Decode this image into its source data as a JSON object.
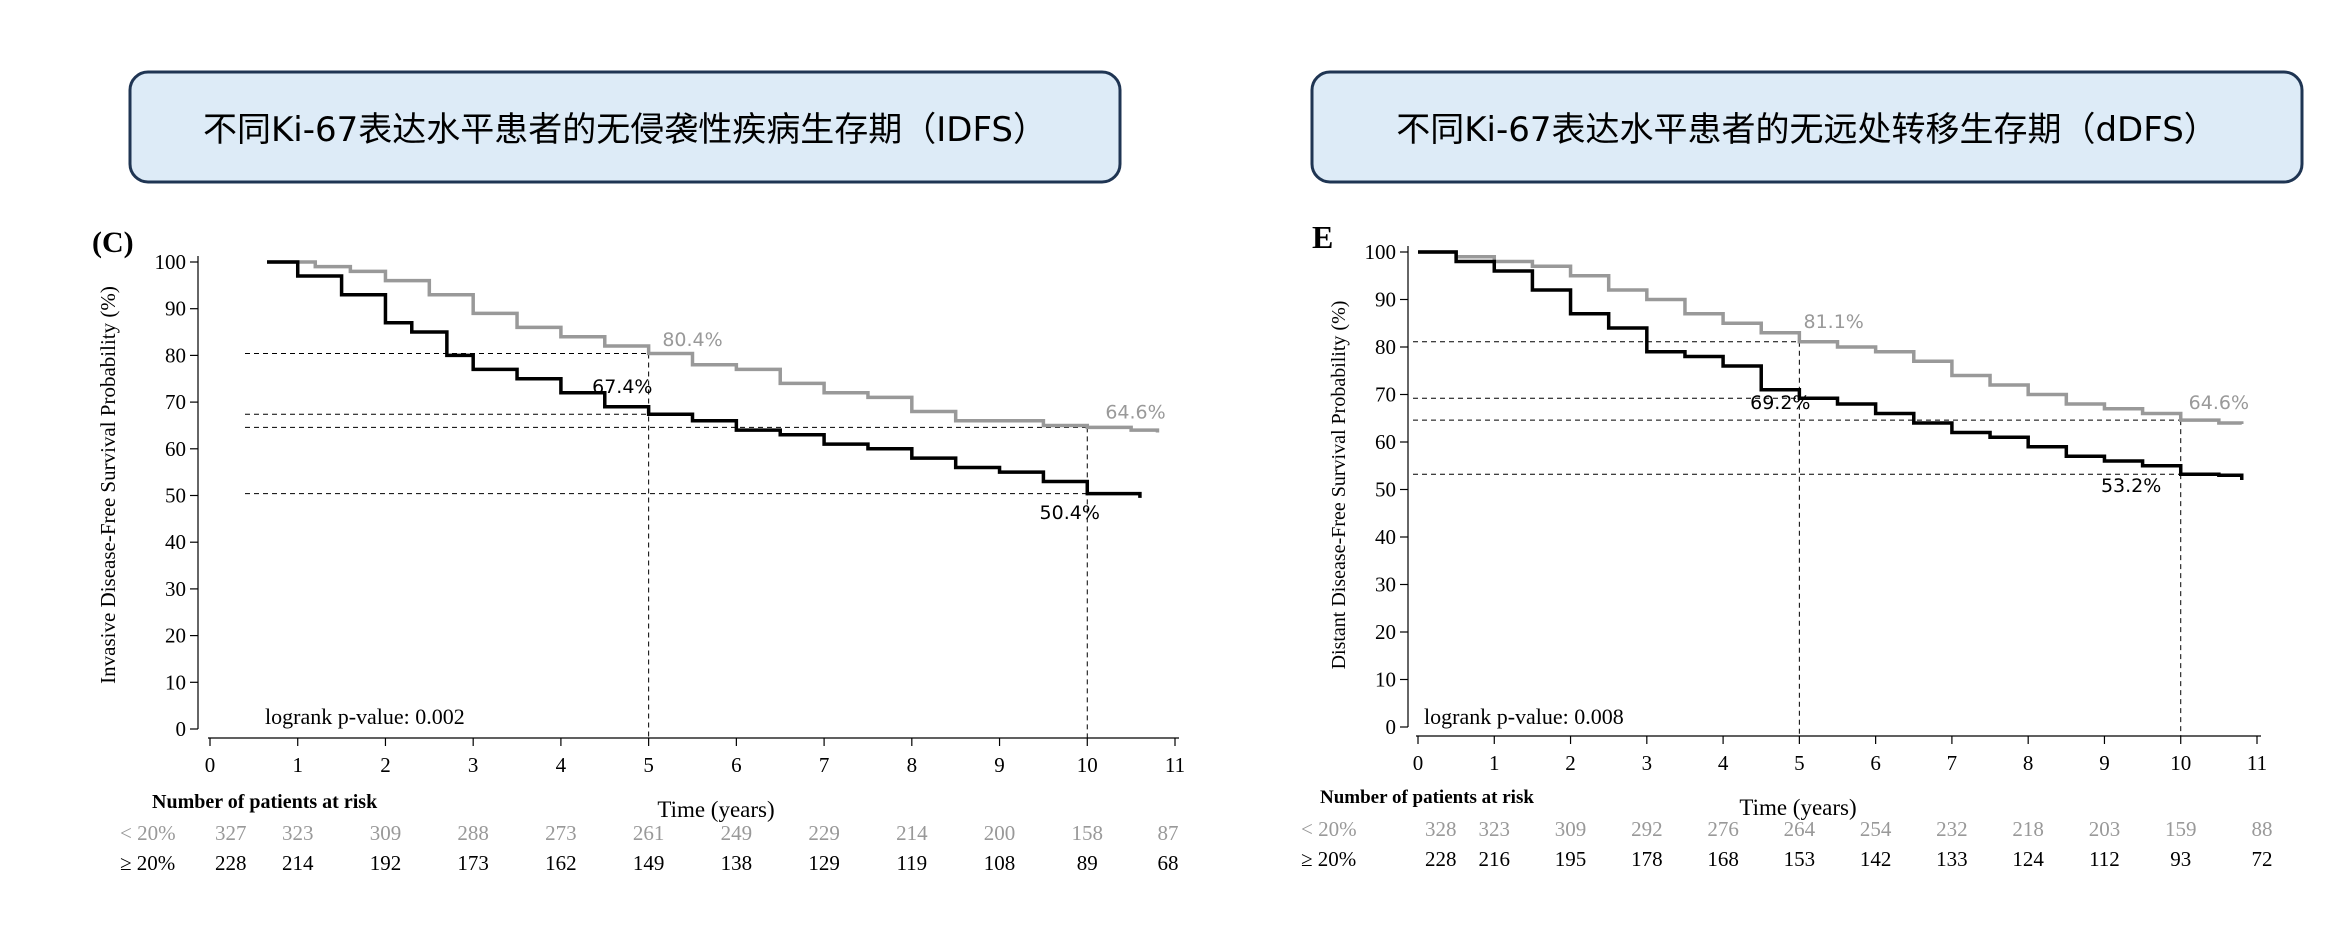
{
  "panels": [
    {
      "title": "不同Ki-67表达水平患者的无侵袭性疾病生存期（IDFS）",
      "panel_label": "(C)",
      "pvalue_text": "logrank p-value: 0.002",
      "risk_header": "Number of patients at risk",
      "risk_rows": [
        {
          "label": "< 20%",
          "values": [
            "327",
            "323",
            "309",
            "288",
            "273",
            "261",
            "249",
            "229",
            "214",
            "200",
            "158",
            "87"
          ]
        },
        {
          "label": "≥ 20%",
          "values": [
            "228",
            "214",
            "192",
            "173",
            "162",
            "149",
            "138",
            "129",
            "119",
            "108",
            "89",
            "68"
          ]
        }
      ]
    },
    {
      "title": "不同Ki-67表达水平患者的无远处转移生存期（dDFS）",
      "panel_label": "E",
      "pvalue_text": "logrank p-value: 0.008",
      "risk_header": "Number of patients at risk",
      "risk_rows": [
        {
          "label": "< 20%",
          "values": [
            "328",
            "323",
            "309",
            "292",
            "276",
            "264",
            "254",
            "232",
            "218",
            "203",
            "159",
            "88"
          ]
        },
        {
          "label": "≥ 20%",
          "values": [
            "228",
            "216",
            "195",
            "178",
            "168",
            "153",
            "142",
            "133",
            "124",
            "112",
            "93",
            "72"
          ]
        }
      ]
    }
  ],
  "chart_data": [
    {
      "type": "line",
      "xlabel": "Time (years)",
      "ylabel": "Invasive Disease-Free Survival Probability (%)",
      "xlim": [
        0,
        11
      ],
      "ylim": [
        0,
        100
      ],
      "x_ticks": [
        0,
        1,
        2,
        3,
        4,
        5,
        6,
        7,
        8,
        9,
        10,
        11
      ],
      "y_ticks": [
        0,
        10,
        20,
        30,
        40,
        50,
        60,
        70,
        80,
        90,
        100
      ],
      "grid": false,
      "reference_x": [
        5,
        10
      ],
      "series": [
        {
          "color": "#999999",
          "x": [
            0.65,
            1.2,
            1.6,
            2.0,
            2.5,
            3.0,
            3.5,
            4.0,
            4.5,
            5.0,
            5.5,
            6.0,
            6.5,
            7.0,
            7.5,
            8.0,
            8.5,
            9.0,
            9.5,
            10.0,
            10.5,
            10.8
          ],
          "values": [
            100,
            99,
            98,
            96,
            93,
            89,
            86,
            84,
            82,
            80.4,
            78,
            77,
            74,
            72,
            71,
            68,
            66,
            66,
            65,
            64.6,
            64,
            63.5
          ]
        },
        {
          "color": "#000000",
          "x": [
            0.65,
            1.0,
            1.5,
            2.0,
            2.3,
            2.7,
            3.0,
            3.5,
            4.0,
            4.5,
            5.0,
            5.5,
            6.0,
            6.5,
            7.0,
            7.5,
            8.0,
            8.5,
            9.0,
            9.5,
            10.0,
            10.6
          ],
          "values": [
            100,
            97,
            93,
            87,
            85,
            80,
            77,
            75,
            72,
            69,
            67.4,
            66,
            64,
            63,
            61,
            60,
            58,
            56,
            55,
            53,
            50.4,
            49.5
          ]
        }
      ],
      "annotations": [
        {
          "text": "80.4%",
          "x": 5.5,
          "y": 82,
          "color": "#999999"
        },
        {
          "text": "67.4%",
          "x": 4.7,
          "y": 72,
          "color": "#000000"
        },
        {
          "text": "64.6%",
          "x": 10.55,
          "y": 66.5,
          "color": "#999999"
        },
        {
          "text": "50.4%",
          "x": 9.8,
          "y": 45,
          "color": "#000000"
        }
      ]
    },
    {
      "type": "line",
      "xlabel": "Time (years)",
      "ylabel": "Distant Disease-Free Survival Probability (%)",
      "xlim": [
        0,
        11
      ],
      "ylim": [
        0,
        100
      ],
      "x_ticks": [
        0,
        1,
        2,
        3,
        4,
        5,
        6,
        7,
        8,
        9,
        10,
        11
      ],
      "y_ticks": [
        0,
        10,
        20,
        30,
        40,
        50,
        60,
        70,
        80,
        90,
        100
      ],
      "grid": false,
      "reference_x": [
        5,
        10
      ],
      "series": [
        {
          "color": "#999999",
          "x": [
            0,
            0.5,
            1.0,
            1.5,
            2.0,
            2.5,
            3.0,
            3.5,
            4.0,
            4.5,
            5.0,
            5.5,
            6.0,
            6.5,
            7.0,
            7.5,
            8.0,
            8.5,
            9.0,
            9.5,
            10.0,
            10.5,
            10.8
          ],
          "values": [
            100,
            99,
            98,
            97,
            95,
            92,
            90,
            87,
            85,
            83,
            81.1,
            80,
            79,
            77,
            74,
            72,
            70,
            68,
            67,
            66,
            64.6,
            64,
            63.8
          ]
        },
        {
          "color": "#000000",
          "x": [
            0,
            0.5,
            1.0,
            1.5,
            2.0,
            2.5,
            3.0,
            3.5,
            4.0,
            4.5,
            5.0,
            5.5,
            6.0,
            6.5,
            7.0,
            7.5,
            8.0,
            8.5,
            9.0,
            9.5,
            10.0,
            10.5,
            10.8
          ],
          "values": [
            100,
            98,
            96,
            92,
            87,
            84,
            79,
            78,
            76,
            71,
            69.2,
            68,
            66,
            64,
            62,
            61,
            59,
            57,
            56,
            55,
            53.2,
            53,
            52
          ]
        }
      ],
      "annotations": [
        {
          "text": "81.1%",
          "x": 5.45,
          "y": 84,
          "color": "#999999"
        },
        {
          "text": "69.2%",
          "x": 4.75,
          "y": 67,
          "color": "#000000"
        },
        {
          "text": "64.6%",
          "x": 10.5,
          "y": 67,
          "color": "#999999"
        },
        {
          "text": "53.2%",
          "x": 9.35,
          "y": 49.5,
          "color": "#000000"
        }
      ]
    }
  ]
}
